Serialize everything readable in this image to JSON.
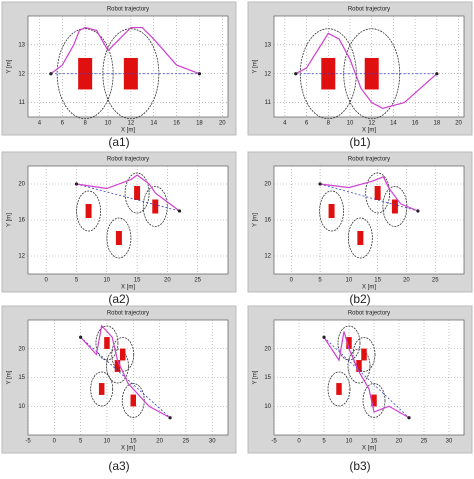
{
  "chart_data": [
    {
      "type": "trajectory",
      "title": "Robot trajectory",
      "xlabel": "X [m]",
      "ylabel": "Y [m]",
      "caption": "(a1)",
      "xlim": [
        3,
        20.5
      ],
      "xticks": [
        4,
        6,
        8,
        10,
        12,
        14,
        16,
        18,
        20
      ],
      "ylim": [
        10.5,
        14
      ],
      "yticks": [
        11,
        12,
        13
      ],
      "path": {
        "color": "#d040d0",
        "x": [
          5,
          6,
          7,
          7.5,
          8,
          9,
          10,
          11,
          12,
          13,
          14,
          16,
          18
        ],
        "y": [
          12,
          12.3,
          13,
          13.5,
          13.6,
          13.5,
          12.8,
          13.2,
          13.6,
          13.6,
          13.2,
          12.3,
          12
        ]
      },
      "start": [
        5,
        12
      ],
      "goal": [
        18,
        12
      ],
      "obstacles": {
        "x": [
          8,
          12
        ],
        "y": [
          12,
          12
        ]
      }
    },
    {
      "type": "trajectory",
      "title": "Robot trajectory",
      "xlabel": "X [m]",
      "ylabel": "Y [m]",
      "caption": "(b1)",
      "xlim": [
        3,
        20.5
      ],
      "xticks": [
        4,
        6,
        8,
        10,
        12,
        14,
        16,
        18,
        20
      ],
      "ylim": [
        10.5,
        14
      ],
      "yticks": [
        11,
        12,
        13
      ],
      "path": {
        "color": "#d040d0",
        "x": [
          5,
          6,
          7,
          8,
          9,
          10,
          10.5,
          11,
          12,
          13,
          15,
          18
        ],
        "y": [
          12,
          12.2,
          12.8,
          13.4,
          13.2,
          12.5,
          12,
          11.5,
          11,
          10.8,
          11,
          12
        ]
      },
      "start": [
        5,
        12
      ],
      "goal": [
        18,
        12
      ],
      "obstacles": {
        "x": [
          8,
          12
        ],
        "y": [
          12,
          12
        ]
      }
    },
    {
      "type": "trajectory",
      "title": "Robot trajectory",
      "xlabel": "X [m]",
      "ylabel": "Y [m]",
      "caption": "(a2)",
      "xlim": [
        -3,
        30
      ],
      "xticks": [
        0,
        5,
        10,
        15,
        20,
        25
      ],
      "ylim": [
        10,
        22
      ],
      "yticks": [
        12,
        16,
        20
      ],
      "path": {
        "color": "#d040d0",
        "x": [
          5,
          10,
          14,
          15,
          17,
          18,
          20,
          22
        ],
        "y": [
          20,
          19.5,
          20.5,
          21,
          20,
          19,
          18,
          17
        ]
      },
      "start": [
        5,
        20
      ],
      "goal": [
        22,
        17
      ],
      "obstacles": {
        "x": [
          7,
          12,
          15,
          18
        ],
        "y": [
          17,
          14,
          19,
          17.5
        ]
      }
    },
    {
      "type": "trajectory",
      "title": "Robot trajectory",
      "xlabel": "X [m]",
      "ylabel": "Y [m]",
      "caption": "(b2)",
      "xlim": [
        -3,
        30
      ],
      "xticks": [
        0,
        5,
        10,
        15,
        20,
        25
      ],
      "ylim": [
        10,
        22
      ],
      "yticks": [
        12,
        16,
        20
      ],
      "path": {
        "color": "#d040d0",
        "x": [
          5,
          10,
          14,
          16,
          17,
          19,
          22
        ],
        "y": [
          20,
          19.6,
          20.3,
          20.8,
          19.5,
          17.8,
          17
        ]
      },
      "start": [
        5,
        20
      ],
      "goal": [
        22,
        17
      ],
      "obstacles": {
        "x": [
          7,
          12,
          15,
          18
        ],
        "y": [
          17,
          14,
          19,
          17.5
        ]
      }
    },
    {
      "type": "trajectory",
      "title": "Robot trajectory",
      "xlabel": "X [m]",
      "ylabel": "Y [m]",
      "caption": "(a3)",
      "xlim": [
        -5,
        33
      ],
      "xticks": [
        -5,
        0,
        5,
        10,
        15,
        20,
        25,
        30
      ],
      "ylim": [
        5,
        25
      ],
      "yticks": [
        10,
        15,
        20
      ],
      "path": {
        "color": "#d040d0",
        "x": [
          5,
          8,
          9,
          11,
          12,
          14,
          18,
          22
        ],
        "y": [
          22,
          19,
          24,
          22,
          18,
          14,
          10,
          8
        ]
      },
      "start": [
        5,
        22
      ],
      "goal": [
        22,
        8
      ],
      "obstacles": {
        "x": [
          9,
          10,
          12,
          13,
          15
        ],
        "y": [
          13,
          21,
          17,
          19,
          11
        ]
      }
    },
    {
      "type": "trajectory",
      "title": "Robot trajectory",
      "xlabel": "X [m]",
      "ylabel": "Y [m]",
      "caption": "(b3)",
      "xlim": [
        -5,
        33
      ],
      "xticks": [
        -5,
        0,
        5,
        10,
        15,
        20,
        25,
        30
      ],
      "ylim": [
        5,
        25
      ],
      "yticks": [
        10,
        15,
        20
      ],
      "path": {
        "color": "#d040d0",
        "x": [
          5,
          8,
          9,
          10,
          12,
          14,
          15,
          18,
          22
        ],
        "y": [
          22,
          18,
          23,
          20,
          16,
          13,
          9,
          10,
          8
        ]
      },
      "start": [
        5,
        22
      ],
      "goal": [
        22,
        8
      ],
      "obstacles": {
        "x": [
          8,
          10,
          12,
          13,
          15
        ],
        "y": [
          13,
          21,
          17,
          19,
          11
        ]
      }
    }
  ]
}
